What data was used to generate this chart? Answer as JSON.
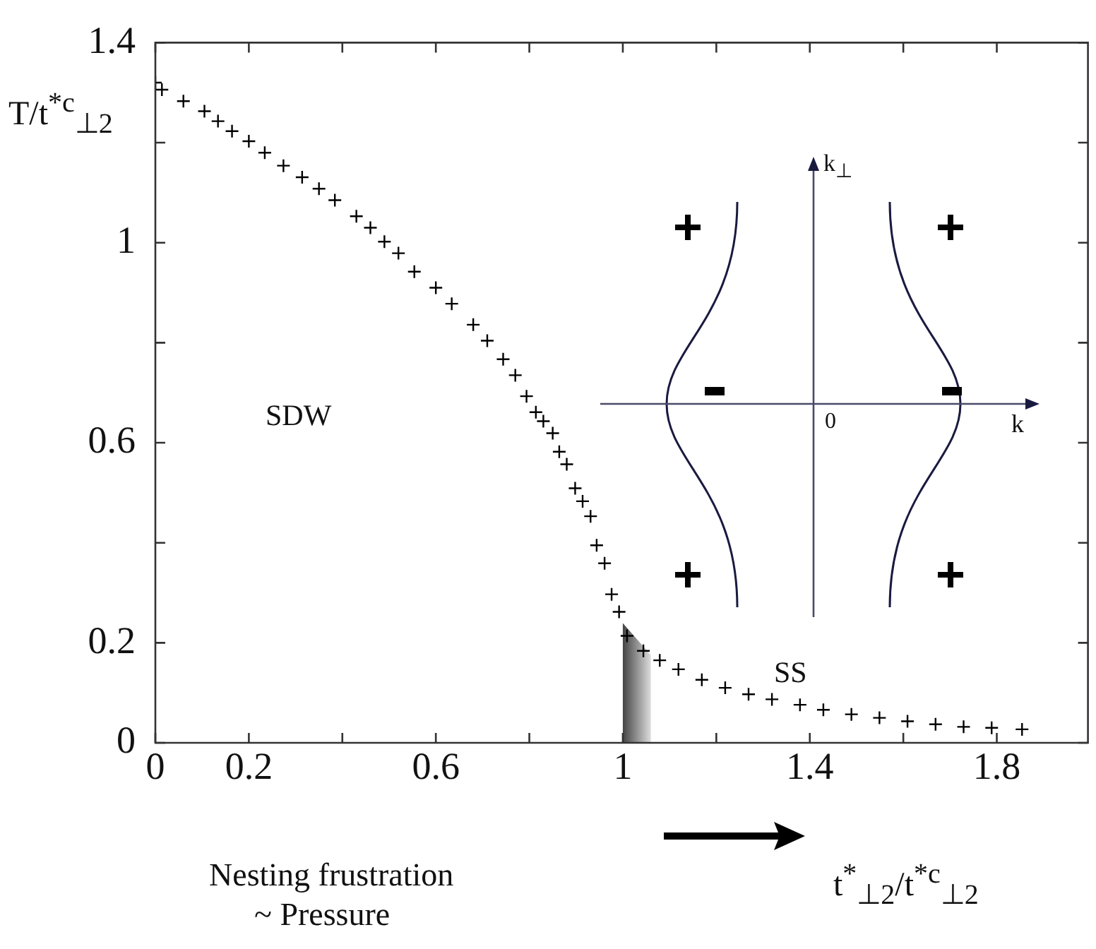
{
  "chart_data": {
    "type": "scatter",
    "xlabel": "t$^{*}$$_{⊥2}$/t$^{*c}$$_{⊥2}$",
    "ylabel": "T/t$^{*c}$$_{⊥2}$",
    "x": [
      0,
      0.014,
      0.06,
      0.105,
      0.134,
      0.164,
      0.2,
      0.234,
      0.274,
      0.314,
      0.35,
      0.384,
      0.43,
      0.46,
      0.49,
      0.52,
      0.554,
      0.6,
      0.634,
      0.68,
      0.71,
      0.744,
      0.77,
      0.794,
      0.814,
      0.83,
      0.85,
      0.864,
      0.88,
      0.898,
      0.914,
      0.931,
      0.944,
      0.961,
      0.976,
      0.992,
      1.009,
      1.044,
      1.079,
      1.119,
      1.169,
      1.219,
      1.269,
      1.319,
      1.379,
      1.429,
      1.489,
      1.549,
      1.609,
      1.669,
      1.729,
      1.789,
      1.854
    ],
    "series": [
      {
        "color": "#000000",
        "values": [
          1.32,
          1.306,
          1.283,
          1.263,
          1.243,
          1.223,
          1.203,
          1.18,
          1.154,
          1.131,
          1.108,
          1.085,
          1.053,
          1.03,
          1.002,
          0.979,
          0.942,
          0.91,
          0.878,
          0.836,
          0.804,
          0.767,
          0.735,
          0.693,
          0.661,
          0.643,
          0.619,
          0.582,
          0.557,
          0.509,
          0.483,
          0.453,
          0.395,
          0.359,
          0.297,
          0.262,
          0.214,
          0.184,
          0.165,
          0.147,
          0.126,
          0.11,
          0.097,
          0.087,
          0.076,
          0.066,
          0.057,
          0.05,
          0.043,
          0.037,
          0.032,
          0.03,
          0.027
        ]
      }
    ],
    "marker": "cross",
    "xlim": [
      0,
      1.995
    ],
    "ylim": [
      0,
      1.4
    ],
    "xticks": [
      0,
      0.2,
      {
        "value": 0.4,
        "label": null
      },
      0.6,
      {
        "value": 0.8,
        "label": null
      },
      1,
      {
        "value": 1.2,
        "label": null
      },
      1.4,
      {
        "value": 1.6,
        "label": null
      },
      1.8
    ],
    "yticks": [
      0,
      0.2,
      {
        "value": 0.4,
        "label": null
      },
      0.6,
      {
        "value": 0.8,
        "label": null
      },
      1,
      {
        "value": 1.2,
        "label": null
      },
      1.4
    ],
    "bands": [
      {
        "axis": "x",
        "from": 1,
        "to": 1.06,
        "color": "#444444"
      }
    ],
    "grid": false,
    "legend": false,
    "annotations": [
      "SDW",
      "SS",
      "Nesting frustration",
      "~ Pressure",
      "k$_{⊥}$",
      "0",
      "k"
    ]
  }
}
